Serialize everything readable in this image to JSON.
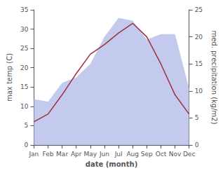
{
  "chart_data": {
    "type": "line",
    "xlabel": "date (month)",
    "ylabel": "max temp (C)",
    "y2label": "med. precipitation (kg/m2)",
    "categories": [
      "Jan",
      "Feb",
      "Mar",
      "Apr",
      "May",
      "Jun",
      "Jul",
      "Aug",
      "Sep",
      "Oct",
      "Nov",
      "Dec"
    ],
    "series": [
      {
        "type": "area",
        "axis": "y2",
        "color": "#b0b8e8",
        "values": [
          8.5,
          8.0,
          11.5,
          12.5,
          15.0,
          20.0,
          23.5,
          23.0,
          19.5,
          20.5,
          20.5,
          10.5
        ]
      },
      {
        "type": "line",
        "color": "#9e3040",
        "values": [
          6.0,
          8.0,
          13.0,
          18.5,
          23.5,
          26.0,
          29.0,
          31.5,
          28.0,
          21.0,
          13.0,
          8.0
        ]
      }
    ],
    "ylim": [
      0,
      35
    ],
    "yticks": [
      0,
      5,
      10,
      15,
      20,
      25,
      30,
      35
    ],
    "y2lim": [
      0,
      25
    ],
    "y2ticks": [
      0,
      5,
      10,
      15,
      20,
      25
    ],
    "grid": false
  }
}
